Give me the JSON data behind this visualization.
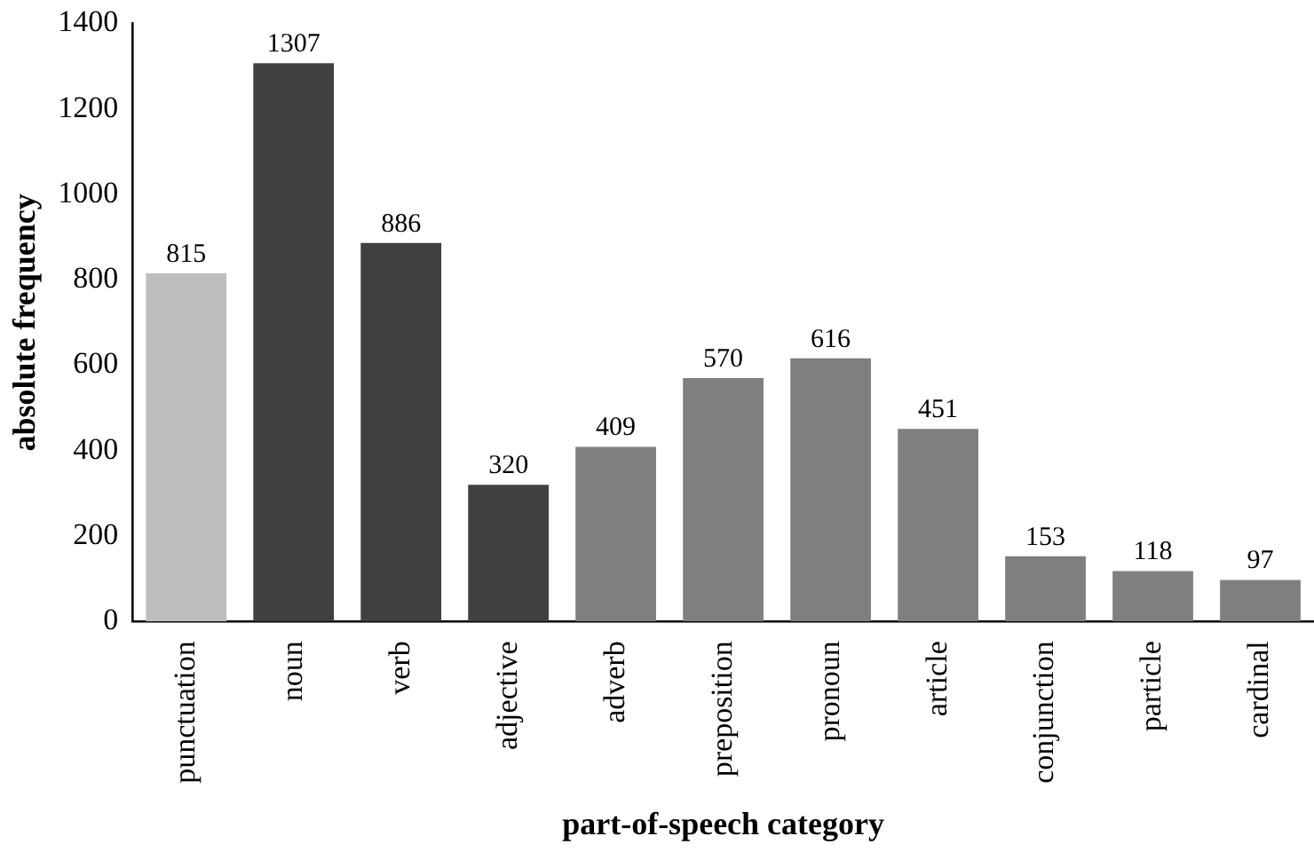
{
  "chart_data": {
    "type": "bar",
    "xlabel": "part-of-speech category",
    "ylabel": "absolute frequency",
    "categories": [
      "punctuation",
      "noun",
      "verb",
      "adjective",
      "adverb",
      "preposition",
      "pronoun",
      "article",
      "conjunction",
      "particle",
      "cardinal"
    ],
    "values": [
      815,
      1307,
      886,
      320,
      409,
      570,
      616,
      451,
      153,
      118,
      97
    ],
    "colors": [
      "#bebebe",
      "#404040",
      "#404040",
      "#404040",
      "#7f7f7f",
      "#7f7f7f",
      "#7f7f7f",
      "#7f7f7f",
      "#7f7f7f",
      "#7f7f7f",
      "#7f7f7f"
    ],
    "ylim": [
      0,
      1400
    ],
    "yticks": [
      0,
      200,
      400,
      600,
      800,
      1000,
      1200,
      1400
    ],
    "data_labels": true,
    "grid": false,
    "legend": false
  }
}
